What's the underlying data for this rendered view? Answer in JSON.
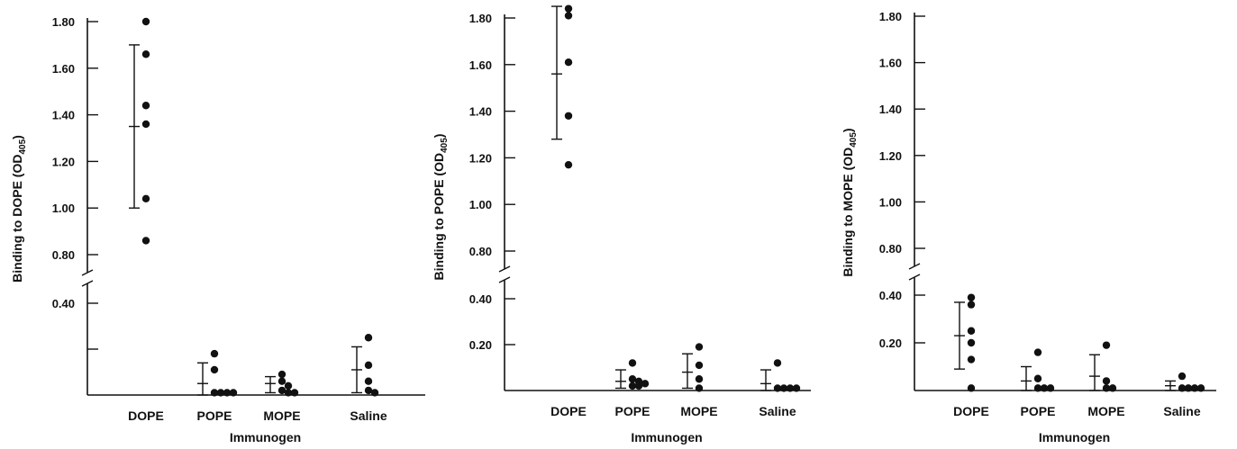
{
  "figure": {
    "color_ink": "#111111",
    "background": "#ffffff"
  },
  "chart_data": [
    {
      "type": "scatter",
      "title": "",
      "xlabel": "Immunogen",
      "ylabel_text": "Binding to DOPE (OD",
      "ylabel_sub": "405",
      "ylabel_close": ")",
      "categories": [
        "DOPE",
        "POPE",
        "MOPE",
        "Saline"
      ],
      "y_axis_break": true,
      "lower_ticks": [
        {
          "v": 0.4,
          "label": "0.40"
        },
        {
          "v": 0.2,
          "label": ""
        }
      ],
      "upper_ticks": [
        {
          "v": 0.8,
          "label": "0.80"
        },
        {
          "v": 1.0,
          "label": "1.00"
        },
        {
          "v": 1.2,
          "label": "1.20"
        },
        {
          "v": 1.4,
          "label": "1.40"
        },
        {
          "v": 1.6,
          "label": "1.60"
        },
        {
          "v": 1.8,
          "label": "1.80"
        }
      ],
      "points": [
        [
          1.8,
          1.66,
          1.44,
          1.36,
          1.04,
          0.86
        ],
        [
          0.18,
          0.11,
          0.01,
          0.01,
          0.01,
          0.01
        ],
        [
          0.09,
          0.06,
          0.04,
          0.02,
          0.01,
          0.01
        ],
        [
          0.25,
          0.13,
          0.06,
          0.02,
          0.01
        ]
      ],
      "means": [
        1.35,
        0.05,
        0.05,
        0.11
      ],
      "err_high": [
        1.7,
        0.14,
        0.08,
        0.21
      ],
      "err_low": [
        1.0,
        0.0,
        0.01,
        0.01
      ]
    },
    {
      "type": "scatter",
      "title": "",
      "xlabel": "Immunogen",
      "ylabel_text": "Binding to POPE (OD",
      "ylabel_sub": "405",
      "ylabel_close": ")",
      "categories": [
        "DOPE",
        "POPE",
        "MOPE",
        "Saline"
      ],
      "y_axis_break": true,
      "lower_ticks": [
        {
          "v": 0.4,
          "label": "0.40"
        },
        {
          "v": 0.2,
          "label": "0.20"
        }
      ],
      "upper_ticks": [
        {
          "v": 0.8,
          "label": "0.80"
        },
        {
          "v": 1.0,
          "label": "1.00"
        },
        {
          "v": 1.2,
          "label": "1.20"
        },
        {
          "v": 1.4,
          "label": "1.40"
        },
        {
          "v": 1.6,
          "label": "1.60"
        },
        {
          "v": 1.8,
          "label": "1.80"
        }
      ],
      "points": [
        [
          1.84,
          1.81,
          1.61,
          1.38,
          1.17
        ],
        [
          0.12,
          0.05,
          0.04,
          0.03,
          0.02,
          0.02
        ],
        [
          0.19,
          0.11,
          0.05,
          0.01
        ],
        [
          0.12,
          0.01,
          0.01,
          0.01,
          0.01
        ]
      ],
      "means": [
        1.56,
        0.04,
        0.08,
        0.03
      ],
      "err_high": [
        1.85,
        0.09,
        0.16,
        0.09
      ],
      "err_low": [
        1.28,
        0.01,
        0.01,
        0.0
      ]
    },
    {
      "type": "scatter",
      "title": "",
      "xlabel": "Immunogen",
      "ylabel_text": "Binding to MOPE (OD",
      "ylabel_sub": "405",
      "ylabel_close": ")",
      "categories": [
        "DOPE",
        "POPE",
        "MOPE",
        "Saline"
      ],
      "y_axis_break": true,
      "lower_ticks": [
        {
          "v": 0.4,
          "label": "0.40"
        },
        {
          "v": 0.2,
          "label": "0.20"
        }
      ],
      "upper_ticks": [
        {
          "v": 0.8,
          "label": "0.80"
        },
        {
          "v": 1.0,
          "label": "1.00"
        },
        {
          "v": 1.2,
          "label": "1.20"
        },
        {
          "v": 1.4,
          "label": "1.40"
        },
        {
          "v": 1.6,
          "label": "1.60"
        },
        {
          "v": 1.8,
          "label": "1.80"
        }
      ],
      "points": [
        [
          0.39,
          0.36,
          0.25,
          0.2,
          0.13,
          0.01
        ],
        [
          0.16,
          0.05,
          0.01,
          0.01,
          0.01
        ],
        [
          0.19,
          0.04,
          0.01,
          0.01
        ],
        [
          0.06,
          0.01,
          0.01,
          0.01,
          0.01
        ]
      ],
      "means": [
        0.23,
        0.04,
        0.06,
        0.02
      ],
      "err_high": [
        0.37,
        0.1,
        0.15,
        0.04
      ],
      "err_low": [
        0.09,
        0.0,
        0.0,
        0.0
      ]
    }
  ]
}
